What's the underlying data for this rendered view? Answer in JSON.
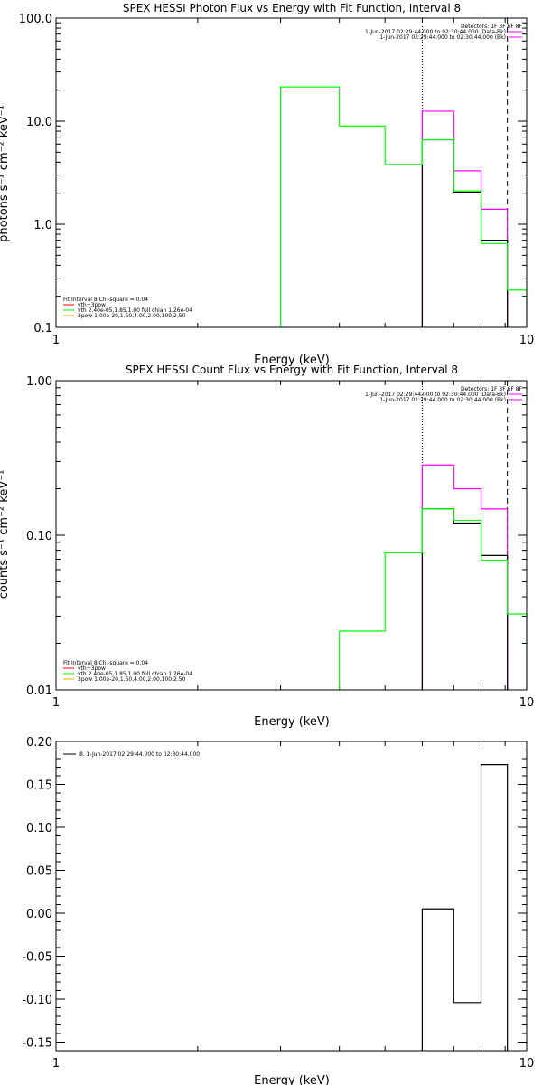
{
  "colors": {
    "magenta": "#ff00ff",
    "green": "#00ff00",
    "black": "#000000",
    "red": "#ff0000",
    "yellow": "#ffaa00"
  },
  "chart_data": [
    {
      "type": "line",
      "step": true,
      "title": "SPEX HESSI Photon Flux vs Energy with Fit Function, Interval 8",
      "xlabel": "Energy (keV)",
      "ylabel": "photons s⁻¹ cm⁻² keV⁻¹",
      "xscale": "log",
      "yscale": "log",
      "xlim": [
        1,
        10
      ],
      "ylim": [
        0.1,
        100
      ],
      "xticks": [
        {
          "v": 1,
          "l": "1"
        },
        {
          "v": 10,
          "l": "10"
        }
      ],
      "yticks": [
        {
          "v": 0.1,
          "l": "0.1"
        },
        {
          "v": 1,
          "l": "1.0"
        },
        {
          "v": 10,
          "l": "10.0"
        },
        {
          "v": 100,
          "l": "100.0"
        }
      ],
      "vlines": [
        {
          "x": 6.0,
          "style": "dotted"
        },
        {
          "x": 9.1,
          "style": "dashed"
        }
      ],
      "series": [
        {
          "role": "data",
          "color": "magenta",
          "edges": [
            6.0,
            7.0,
            8.0,
            9.1
          ],
          "values": [
            12.5,
            3.3,
            1.4
          ]
        },
        {
          "role": "model",
          "color": "black",
          "edges": [
            6.0,
            7.0,
            8.0,
            9.1
          ],
          "values": [
            6.6,
            2.05,
            0.7
          ]
        },
        {
          "role": "fit",
          "color": "green",
          "edges": [
            3.0,
            4.0,
            5.0,
            6.0,
            7.0,
            8.0,
            9.1,
            10.0
          ],
          "values": [
            21.5,
            9.0,
            3.8,
            6.6,
            2.1,
            0.65,
            0.23
          ]
        }
      ],
      "legend_top": [
        "Detectors: 1F 3F 6F 8F",
        "1-Jun-2017 02:29:44.000 to 02:30:44.000 (Data-Bk)",
        "1-Jun-2017 02:29:44.000 to 02:30:44.000 (Bk)"
      ],
      "legend_bottom": [
        "Fit Interval 8   Chi-square = 0.04",
        "vth+3pow",
        "vth 2.40e-05,1.85,1.00   full chian 1.26e-04",
        "3pow 1.00e-20,1.50,4.00,2.00,100,2.50"
      ]
    },
    {
      "type": "line",
      "step": true,
      "title": "SPEX HESSI Count Flux vs Energy with Fit Function, Interval 8",
      "xlabel": "Energy (keV)",
      "ylabel": "counts s⁻¹ cm⁻² keV⁻¹",
      "xscale": "log",
      "yscale": "log",
      "xlim": [
        1,
        10
      ],
      "ylim": [
        0.01,
        1
      ],
      "xticks": [
        {
          "v": 1,
          "l": "1"
        },
        {
          "v": 10,
          "l": "10"
        }
      ],
      "yticks": [
        {
          "v": 0.01,
          "l": "0.01"
        },
        {
          "v": 0.1,
          "l": "0.10"
        },
        {
          "v": 1,
          "l": "1.00"
        }
      ],
      "vlines": [
        {
          "x": 6.0,
          "style": "dotted"
        },
        {
          "x": 9.1,
          "style": "dashed"
        }
      ],
      "series": [
        {
          "role": "data",
          "color": "magenta",
          "edges": [
            6.0,
            7.0,
            8.0,
            9.1
          ],
          "values": [
            0.285,
            0.2,
            0.148
          ]
        },
        {
          "role": "model",
          "color": "black",
          "edges": [
            6.0,
            7.0,
            8.0,
            9.1
          ],
          "values": [
            0.148,
            0.12,
            0.074
          ]
        },
        {
          "role": "fit",
          "color": "green",
          "edges": [
            4.0,
            5.0,
            6.0,
            7.0,
            8.0,
            9.1,
            10.0
          ],
          "values": [
            0.024,
            0.077,
            0.148,
            0.125,
            0.069,
            0.031
          ]
        }
      ],
      "legend_top": [
        "Detectors: 1F 3F 6F 8F",
        "1-Jun-2017 02:29:44.000 to 02:30:44.000 (Data-Bk)",
        "1-Jun-2017 02:29:44.000 to 02:30:44.000 (Bk)"
      ],
      "legend_bottom": [
        "Fit Interval 8   Chi-square = 0.04",
        "vth+3pow",
        "vth 2.40e-05,1.85,1.00   full chian 1.26e-04",
        "3pow 1.00e-20,1.50,4.00,2.00,100,2.50"
      ]
    },
    {
      "type": "line",
      "step": true,
      "title": "",
      "xlabel": "Energy (keV)",
      "ylabel": "",
      "xscale": "log",
      "yscale": "linear",
      "xlim": [
        1,
        10
      ],
      "ylim": [
        -0.16,
        0.2
      ],
      "xticks": [
        {
          "v": 1,
          "l": "1"
        },
        {
          "v": 10,
          "l": "10"
        }
      ],
      "yticks": [
        {
          "v": 0.2,
          "l": "0.20"
        },
        {
          "v": 0.15,
          "l": "0.15"
        },
        {
          "v": 0.1,
          "l": "0.10"
        },
        {
          "v": 0.05,
          "l": "0.05"
        },
        {
          "v": 0.0,
          "l": "0.00"
        },
        {
          "v": -0.05,
          "l": "-0.05"
        },
        {
          "v": -0.1,
          "l": "-0.10"
        },
        {
          "v": -0.15,
          "l": "-0.15"
        }
      ],
      "vlines": [],
      "series": [
        {
          "role": "residual",
          "color": "black",
          "edges": [
            6.0,
            7.0,
            8.0,
            9.1
          ],
          "values": [
            0.005,
            -0.104,
            0.173
          ]
        }
      ],
      "legend_top": [],
      "legend_bottom": [],
      "legend_line": "8.  1-Jun-2017 02:29:44.000 to 02:30:44.000"
    }
  ]
}
